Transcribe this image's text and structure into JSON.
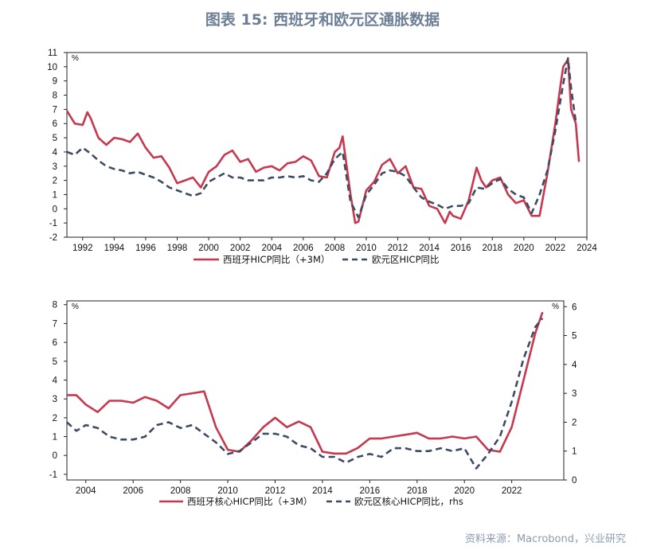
{
  "header": {
    "title": "图表 15: 西班牙和欧元区通胀数据"
  },
  "footer": {
    "source": "资料来源：Macrobond，兴业研究"
  },
  "colors": {
    "series1": "#c5384e",
    "series2": "#3d4b63"
  },
  "chart_data": [
    {
      "type": "line",
      "unit_left": "%",
      "xlim": [
        1991,
        2024
      ],
      "xticks": [
        1992,
        1994,
        1996,
        1998,
        2000,
        2002,
        2004,
        2006,
        2008,
        2010,
        2012,
        2014,
        2016,
        2018,
        2020,
        2022,
        2024
      ],
      "ylim": [
        -2,
        11
      ],
      "yticks": [
        -2,
        -1,
        0,
        1,
        2,
        3,
        4,
        5,
        6,
        7,
        8,
        9,
        10,
        11
      ],
      "series": [
        {
          "name": "西班牙HICP同比（+3M）",
          "style": "solid",
          "x": [
            1991,
            1991.5,
            1992,
            1992.3,
            1992.5,
            1993,
            1993.5,
            1994,
            1994.5,
            1995,
            1995.5,
            1996,
            1996.5,
            1997,
            1997.5,
            1998,
            1998.5,
            1999,
            1999.5,
            2000,
            2000.5,
            2001,
            2001.5,
            2002,
            2002.5,
            2003,
            2003.5,
            2004,
            2004.5,
            2005,
            2005.5,
            2006,
            2006.5,
            2007,
            2007.5,
            2008,
            2008.3,
            2008.5,
            2009,
            2009.3,
            2009.5,
            2010,
            2010.5,
            2011,
            2011.5,
            2012,
            2012.5,
            2013,
            2013.5,
            2014,
            2014.5,
            2015,
            2015.3,
            2015.5,
            2016,
            2016.5,
            2017,
            2017.3,
            2017.6,
            2018,
            2018.5,
            2019,
            2019.5,
            2020,
            2020.5,
            2021,
            2021.5,
            2022,
            2022.3,
            2022.5,
            2022.8,
            2023,
            2023.3,
            2023.5
          ],
          "y": [
            6.9,
            6.0,
            5.9,
            6.8,
            6.4,
            5.0,
            4.5,
            5.0,
            4.9,
            4.7,
            5.3,
            4.3,
            3.6,
            3.7,
            2.9,
            1.8,
            2.0,
            2.2,
            1.5,
            2.6,
            3.0,
            3.8,
            4.1,
            3.3,
            3.5,
            2.6,
            2.9,
            3.0,
            2.7,
            3.2,
            3.3,
            3.7,
            3.4,
            2.3,
            2.2,
            4.0,
            4.3,
            5.1,
            1.0,
            -1.0,
            -0.9,
            1.3,
            1.9,
            3.1,
            3.5,
            2.5,
            3.0,
            1.5,
            1.4,
            0.2,
            0.0,
            -1.0,
            -0.2,
            -0.5,
            -0.7,
            0.6,
            2.9,
            2.0,
            1.5,
            2.0,
            2.2,
            1.0,
            0.4,
            0.6,
            -0.5,
            -0.5,
            2.5,
            6.0,
            8.5,
            10.0,
            10.5,
            7.0,
            6.0,
            3.3
          ]
        },
        {
          "name": "欧元区HICP同比",
          "style": "dashed",
          "x": [
            1991,
            1991.5,
            1992,
            1992.5,
            1993,
            1993.5,
            1994,
            1994.5,
            1995,
            1995.5,
            1996,
            1996.5,
            1997,
            1997.5,
            1998,
            1998.5,
            1999,
            1999.5,
            2000,
            2000.5,
            2001,
            2001.5,
            2002,
            2002.5,
            2003,
            2003.5,
            2004,
            2004.5,
            2005,
            2005.5,
            2006,
            2006.5,
            2007,
            2007.5,
            2008,
            2008.5,
            2009,
            2009.5,
            2010,
            2010.5,
            2011,
            2011.5,
            2012,
            2012.5,
            2013,
            2013.5,
            2014,
            2014.5,
            2015,
            2015.5,
            2016,
            2016.5,
            2017,
            2017.5,
            2018,
            2018.5,
            2019,
            2019.5,
            2020,
            2020.5,
            2021,
            2021.5,
            2022,
            2022.3,
            2022.5,
            2022.8,
            2023,
            2023.3
          ],
          "y": [
            4.0,
            3.8,
            4.3,
            3.9,
            3.4,
            3.0,
            2.8,
            2.7,
            2.5,
            2.6,
            2.4,
            2.2,
            1.9,
            1.5,
            1.3,
            1.1,
            0.9,
            1.1,
            1.9,
            2.2,
            2.5,
            2.2,
            2.2,
            2.0,
            2.0,
            2.0,
            2.2,
            2.2,
            2.3,
            2.2,
            2.3,
            2.0,
            1.9,
            2.5,
            3.5,
            4.0,
            0.5,
            -0.6,
            1.0,
            1.7,
            2.5,
            2.7,
            2.6,
            2.3,
            1.5,
            0.8,
            0.5,
            0.3,
            0.0,
            0.2,
            0.2,
            0.4,
            1.5,
            1.4,
            1.8,
            2.1,
            1.4,
            1.0,
            0.8,
            -0.3,
            1.0,
            2.7,
            5.5,
            7.5,
            8.8,
            10.6,
            8.5,
            6.1
          ]
        }
      ]
    },
    {
      "type": "line",
      "unit_left": "%",
      "unit_right": "%",
      "xlim": [
        2003.2,
        2024.2
      ],
      "xticks": [
        2004,
        2006,
        2008,
        2010,
        2012,
        2014,
        2016,
        2018,
        2020,
        2022
      ],
      "ylim": [
        -1.3,
        8.2
      ],
      "yticks": [
        -1,
        0,
        1,
        2,
        3,
        4,
        5,
        6,
        7,
        8
      ],
      "y2lim": [
        0,
        6.2
      ],
      "y2ticks": [
        0,
        1,
        2,
        3,
        4,
        5,
        6
      ],
      "series": [
        {
          "name": "西班牙核心HICP同比（+3M）",
          "style": "solid",
          "axis": "left",
          "x": [
            2003.2,
            2003.6,
            2004,
            2004.5,
            2005,
            2005.5,
            2006,
            2006.5,
            2007,
            2007.5,
            2008,
            2008.5,
            2009,
            2009.5,
            2010,
            2010.5,
            2011,
            2011.5,
            2012,
            2012.5,
            2013,
            2013.5,
            2014,
            2014.5,
            2015,
            2015.5,
            2016,
            2016.5,
            2017,
            2017.5,
            2018,
            2018.5,
            2019,
            2019.5,
            2020,
            2020.5,
            2021,
            2021.5,
            2022,
            2022.5,
            2023,
            2023.3
          ],
          "y": [
            3.2,
            3.2,
            2.7,
            2.3,
            2.9,
            2.9,
            2.8,
            3.1,
            2.9,
            2.5,
            3.2,
            3.3,
            3.4,
            1.5,
            0.3,
            0.2,
            0.8,
            1.5,
            2.0,
            1.5,
            1.8,
            1.5,
            0.2,
            0.1,
            0.1,
            0.4,
            0.9,
            0.9,
            1.0,
            1.1,
            1.2,
            0.9,
            0.9,
            1.0,
            0.9,
            1.0,
            0.3,
            0.2,
            1.5,
            4.0,
            6.5,
            7.6
          ]
        },
        {
          "name": "欧元区核心HICP同比，rhs",
          "style": "dashed",
          "axis": "right",
          "x": [
            2003.2,
            2003.6,
            2004,
            2004.5,
            2005,
            2005.5,
            2006,
            2006.5,
            2007,
            2007.5,
            2008,
            2008.5,
            2009,
            2009.5,
            2010,
            2010.5,
            2011,
            2011.5,
            2012,
            2012.5,
            2013,
            2013.5,
            2014,
            2014.5,
            2015,
            2015.5,
            2016,
            2016.5,
            2017,
            2017.5,
            2018,
            2018.5,
            2019,
            2019.5,
            2020,
            2020.5,
            2021,
            2021.5,
            2022,
            2022.5,
            2023,
            2023.3
          ],
          "y": [
            2.0,
            1.7,
            1.9,
            1.8,
            1.5,
            1.4,
            1.4,
            1.5,
            1.9,
            2.0,
            1.8,
            1.9,
            1.6,
            1.3,
            0.9,
            1.0,
            1.3,
            1.6,
            1.6,
            1.5,
            1.2,
            1.1,
            0.8,
            0.8,
            0.6,
            0.8,
            0.9,
            0.8,
            1.1,
            1.1,
            1.0,
            1.0,
            1.1,
            1.0,
            1.1,
            0.4,
            0.9,
            1.5,
            2.7,
            4.2,
            5.3,
            5.6
          ]
        }
      ]
    }
  ]
}
